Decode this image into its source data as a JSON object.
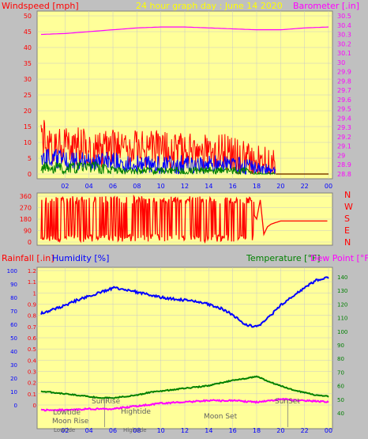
{
  "header": {
    "left_label": "Windspeed [mph]",
    "center_label": "24 hour graph day : June 14 2020",
    "right_label": "Barometer [.in]"
  },
  "colors": {
    "plot_bg": "#ffff99",
    "frame": "#c0c0c0",
    "wind_gust": "#ff0000",
    "wind_avg": "#0000ff",
    "wind_low": "#008000",
    "barometer": "#ff00ff",
    "humidity": "#0000ff",
    "temperature": "#008000",
    "dewpoint": "#ff00ff",
    "winddir": "#ff0000",
    "tick_text": "#0000ff",
    "astro_text": "#606060"
  },
  "x_ticks": [
    "02",
    "04",
    "06",
    "08",
    "10",
    "12",
    "14",
    "16",
    "18",
    "20",
    "22",
    "00"
  ],
  "chart_data": [
    {
      "type": "line",
      "name": "wind-barometer",
      "ylabel": "Windspeed [mph]",
      "ylabel_right": "Barometer [.in]",
      "ylim": [
        0,
        50
      ],
      "ylim_right": [
        28.8,
        30.5
      ],
      "y_ticks": [
        "50",
        "45",
        "40",
        "35",
        "30",
        "25",
        "20",
        "15",
        "10",
        "5",
        "0"
      ],
      "y_ticks_right": [
        "30.5",
        "30.4",
        "30.3",
        "30.2",
        "30.1",
        "30",
        "29.9",
        "29.8",
        "29.7",
        "29.6",
        "29.5",
        "29.4",
        "29.3",
        "29.2",
        "29.1",
        "29",
        "28.9",
        "28.8"
      ],
      "xlim": [
        0,
        24
      ],
      "series": [
        {
          "name": "gust",
          "x": [
            0,
            1,
            2,
            3,
            4,
            5,
            6,
            7,
            8,
            9,
            10,
            11,
            12,
            13,
            14,
            15,
            16,
            17,
            18,
            19,
            19.5,
            20,
            20.5,
            24
          ],
          "values": [
            12,
            9,
            9,
            9,
            8,
            8,
            8,
            8,
            8,
            8,
            8,
            7,
            7,
            7,
            7,
            7,
            6,
            5,
            4,
            3,
            3,
            1,
            0,
            0
          ]
        },
        {
          "name": "average",
          "x": [
            0,
            1,
            2,
            3,
            4,
            5,
            6,
            7,
            8,
            9,
            10,
            11,
            12,
            13,
            14,
            15,
            16,
            17,
            18,
            19,
            19.5,
            20,
            20.5,
            24
          ],
          "values": [
            5,
            5,
            4,
            4,
            4,
            4,
            4,
            3,
            3,
            3,
            3,
            3,
            3,
            3,
            3,
            3,
            3,
            2,
            2,
            1,
            1,
            0,
            0,
            0
          ]
        },
        {
          "name": "low",
          "x": [
            0,
            1,
            2,
            3,
            4,
            5,
            6,
            7,
            8,
            9,
            10,
            11,
            12,
            13,
            14,
            15,
            16,
            17,
            18,
            19,
            19.5,
            20,
            20.5,
            24
          ],
          "values": [
            2,
            2,
            2,
            2,
            2,
            2,
            1,
            1,
            1,
            1,
            1,
            1,
            1,
            1,
            1,
            1,
            1,
            1,
            0,
            0,
            0,
            0,
            0,
            0
          ]
        },
        {
          "name": "barometer",
          "x": [
            0,
            2,
            4,
            6,
            8,
            10,
            12,
            14,
            16,
            18,
            20,
            22,
            24
          ],
          "values": [
            30.3,
            30.31,
            30.33,
            30.35,
            30.37,
            30.38,
            30.38,
            30.37,
            30.36,
            30.35,
            30.35,
            30.37,
            30.38
          ]
        }
      ]
    },
    {
      "type": "line",
      "name": "wind-direction",
      "ylim": [
        0,
        360
      ],
      "y_ticks": [
        "360",
        "270",
        "180",
        "90",
        "0"
      ],
      "right_labels": [
        "N",
        "W",
        "S",
        "E",
        "N"
      ],
      "xlim": [
        0,
        24
      ],
      "series": [
        {
          "name": "direction",
          "x": [
            17.8,
            18,
            18.3,
            18.6,
            18.9,
            19.2,
            19.5,
            20,
            21,
            22,
            23,
            24
          ],
          "values": [
            210,
            180,
            330,
            60,
            120,
            140,
            150,
            165,
            165,
            165,
            165,
            165
          ]
        }
      ]
    },
    {
      "type": "line",
      "name": "humidity-temperature",
      "ylabel_left": "Rainfall [.in]",
      "ylabel_left2": "Humidity [%]",
      "ylabel_right": "Temperature [°F]",
      "ylabel_right2": "Dew Point [°F]",
      "ylim_rain": [
        0,
        1.2
      ],
      "ylim_humidity": [
        0,
        100
      ],
      "ylim_temp": [
        30,
        145
      ],
      "rain_ticks": [
        "1.2",
        "1.1",
        "1",
        "0.9",
        "0.8",
        "0.7",
        "0.6",
        "0.5",
        "0.4",
        "0.3",
        "0.2",
        "0.1",
        "0"
      ],
      "humidity_ticks": [
        "100",
        "90",
        "80",
        "70",
        "60",
        "50",
        "40",
        "30",
        "20",
        "10",
        "0"
      ],
      "temp_ticks": [
        "140",
        "130",
        "120",
        "110",
        "100",
        "90",
        "80",
        "70",
        "60",
        "50",
        "40"
      ],
      "xlim": [
        0,
        24
      ],
      "series": [
        {
          "name": "humidity",
          "x": [
            0,
            1,
            2,
            3,
            4,
            5,
            6,
            7,
            8,
            9,
            10,
            11,
            12,
            13,
            14,
            15,
            16,
            17,
            18,
            19,
            20,
            21,
            22,
            23,
            24
          ],
          "values": [
            68,
            71,
            74,
            78,
            81,
            84,
            87,
            86,
            84,
            82,
            80,
            79,
            78,
            77,
            75,
            72,
            67,
            60,
            58,
            65,
            74,
            81,
            87,
            93,
            95
          ]
        },
        {
          "name": "temperature",
          "x": [
            0,
            1,
            2,
            3,
            4,
            5,
            6,
            7,
            8,
            9,
            10,
            11,
            12,
            13,
            14,
            15,
            16,
            17,
            18,
            19,
            20,
            21,
            22,
            23,
            24
          ],
          "values": [
            56,
            55,
            54,
            53,
            52,
            51,
            51,
            52,
            53,
            55,
            56,
            57,
            58,
            59,
            60,
            62,
            64,
            65,
            67,
            63,
            60,
            57,
            55,
            53,
            52
          ]
        },
        {
          "name": "dewpoint",
          "x": [
            0,
            2,
            4,
            6,
            8,
            10,
            12,
            14,
            16,
            18,
            20,
            22,
            24
          ],
          "values": [
            42,
            42,
            43,
            43,
            45,
            47,
            48,
            49,
            49,
            48,
            50,
            49,
            48
          ]
        }
      ],
      "astro": {
        "lowtide": "Lowtide",
        "moonrise": "Moon Rise",
        "sunrise": "SunRise",
        "hightide": "Hightide",
        "moonset": "Moon Set",
        "sunset": "SunSet",
        "lowtide_small": "Lowtide",
        "hightide_small": "Hightide"
      }
    }
  ]
}
